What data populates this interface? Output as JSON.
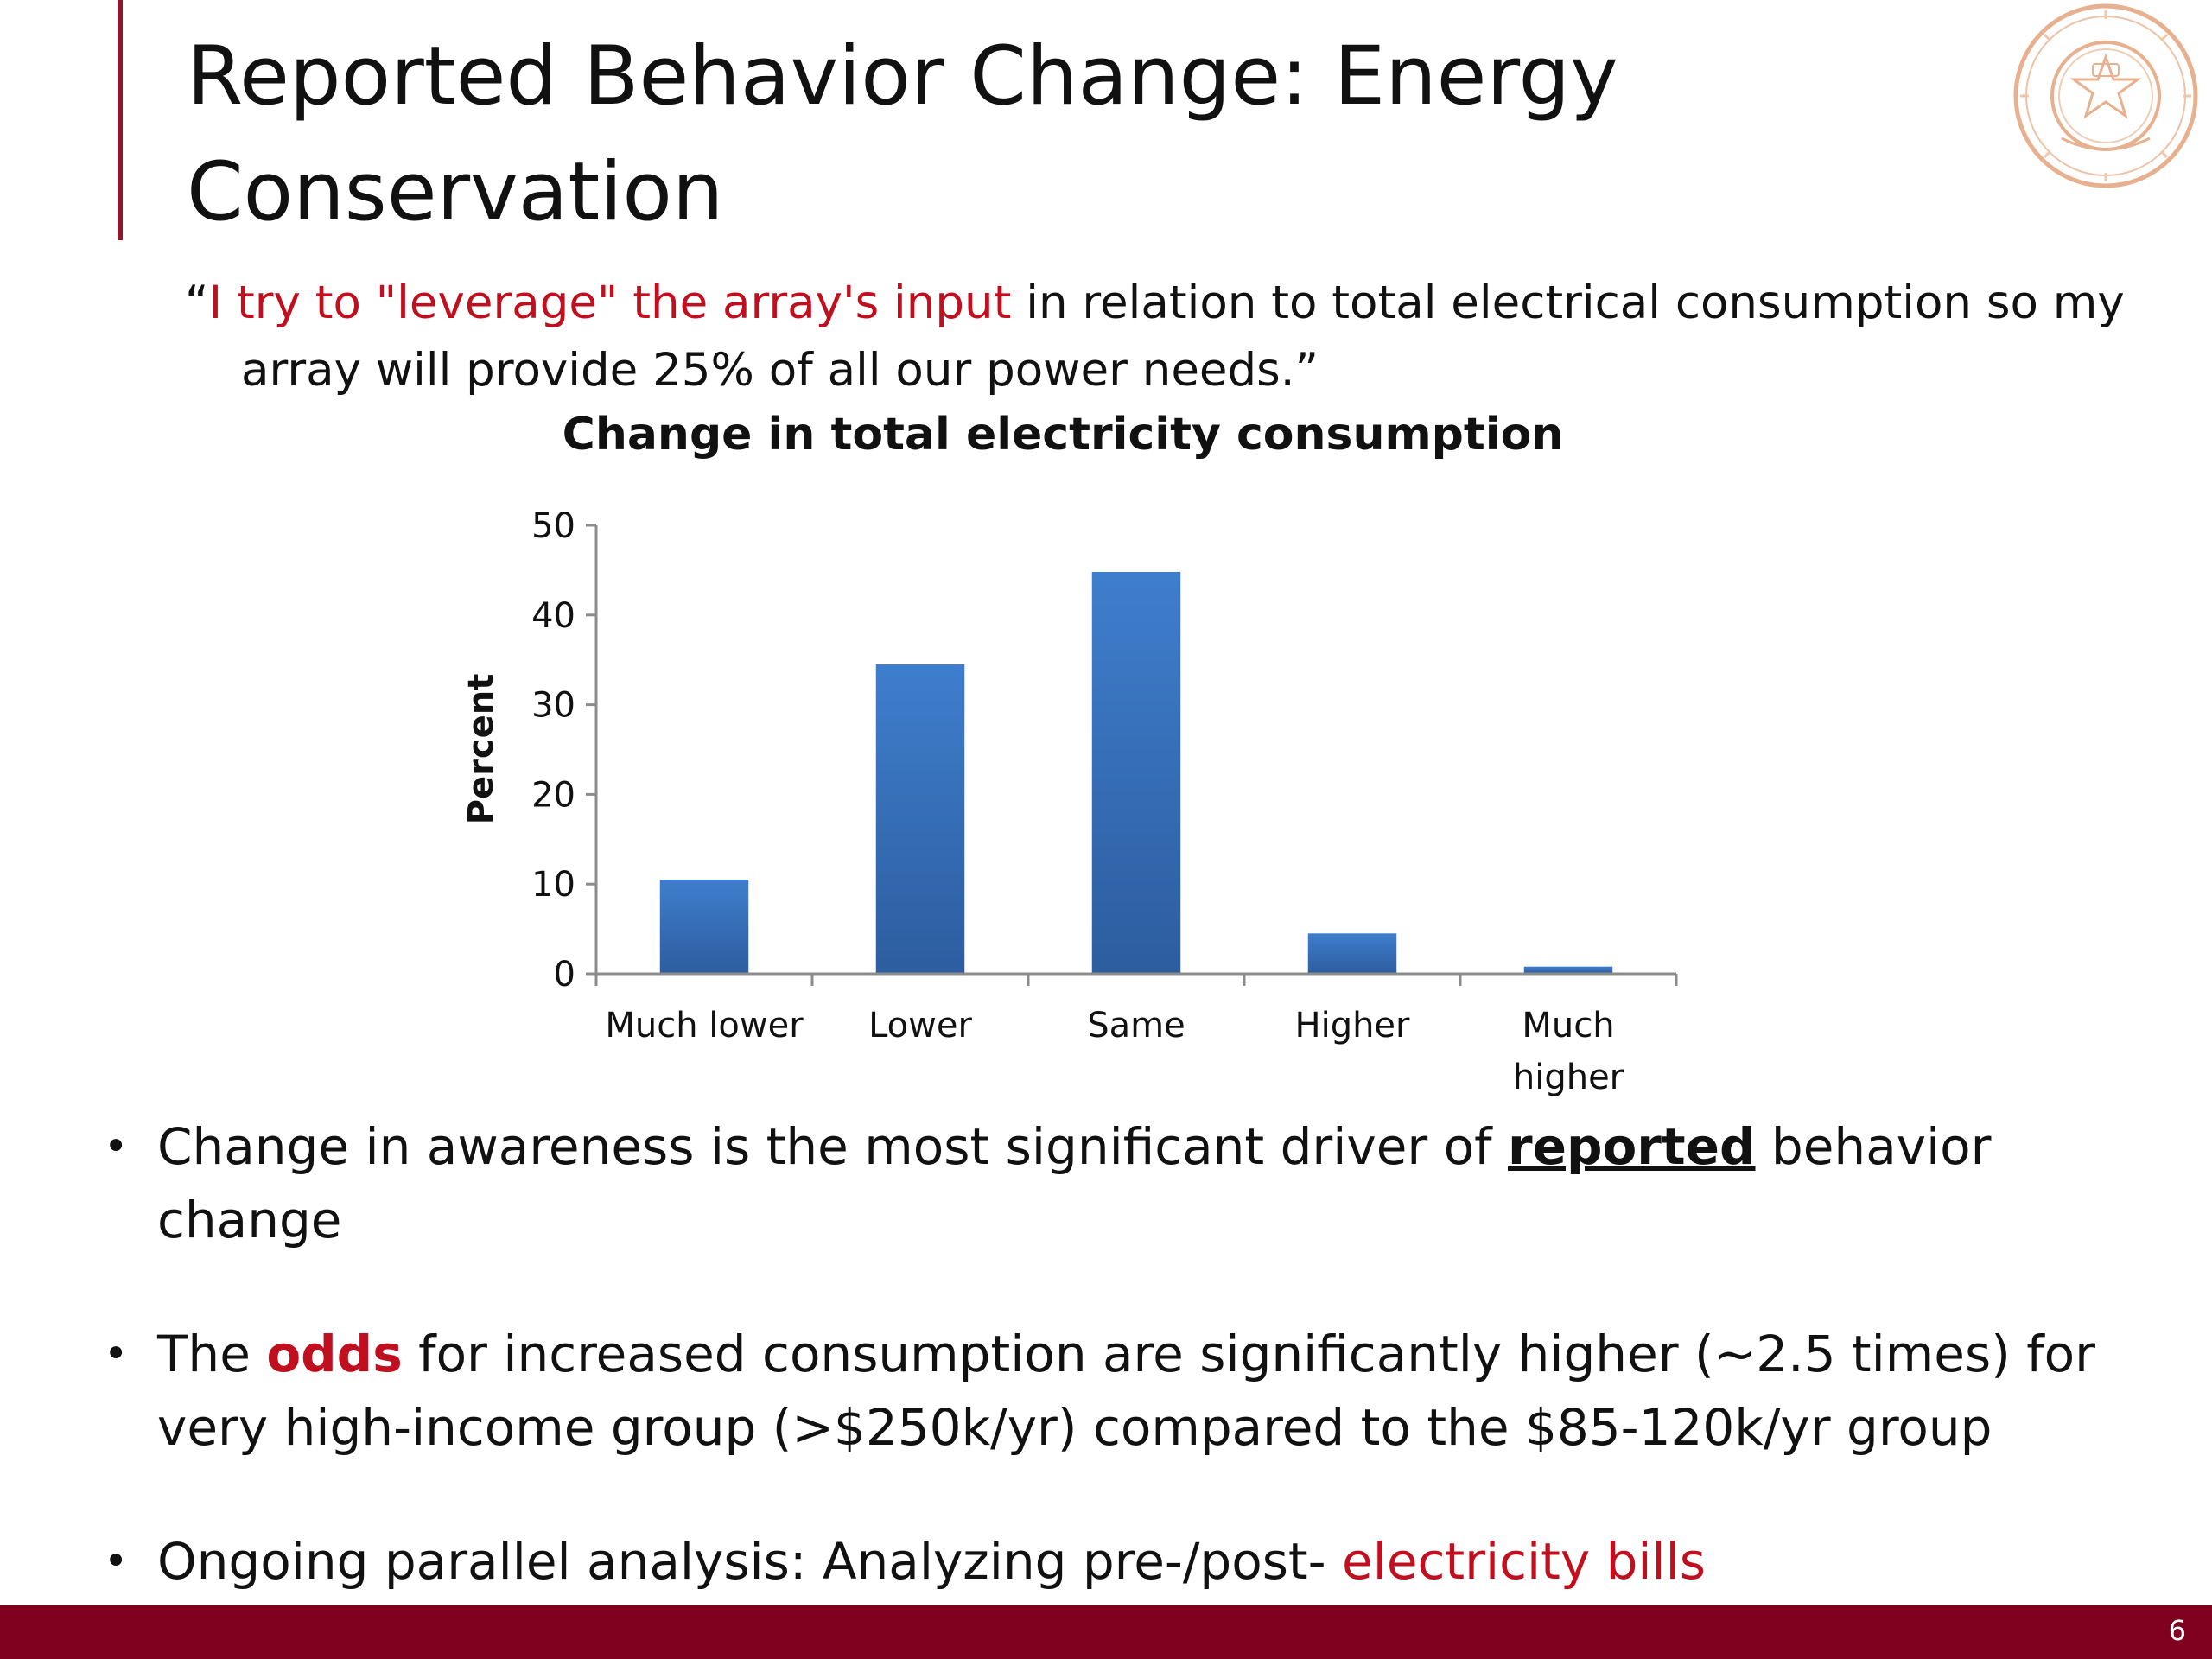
{
  "slide": {
    "title": "Reported Behavior Change: Energy Conservation",
    "page_number": "6"
  },
  "quote": {
    "open": "“",
    "highlight": "I try to \"leverage\" the array's input",
    "rest": " in relation to total electrical consumption so my array will provide 25% of all our power needs.”"
  },
  "colors": {
    "accent": "#8a1a2b",
    "footer": "#800020",
    "highlight": "#c0101f",
    "bar": "#3a6fc0"
  },
  "chart_data": {
    "type": "bar",
    "title": "Change in total electricity consumption",
    "ylabel": "Percent",
    "xlabel": "",
    "categories": [
      "Much lower",
      "Lower",
      "Same",
      "Higher",
      "Much higher"
    ],
    "values": [
      10.5,
      34.5,
      44.8,
      4.5,
      0.8
    ],
    "ylim": [
      0,
      50
    ],
    "yticks": [
      0,
      10,
      20,
      30,
      40,
      50
    ],
    "grid": false,
    "legend": "none"
  },
  "bullets": [
    {
      "before": "Change in awareness is the most significant driver of ",
      "emphasis": "reported",
      "after": " behavior change"
    },
    {
      "before": "The ",
      "emphasis": "odds",
      "after": " for increased consumption are significantly higher (~2.5 times) for very high-income group (>$250k/yr) compared to the $85-120k/yr group"
    },
    {
      "before": "Ongoing parallel analysis: Analyzing pre-/post- ",
      "emphasis": "electricity bills",
      "after": ""
    }
  ]
}
